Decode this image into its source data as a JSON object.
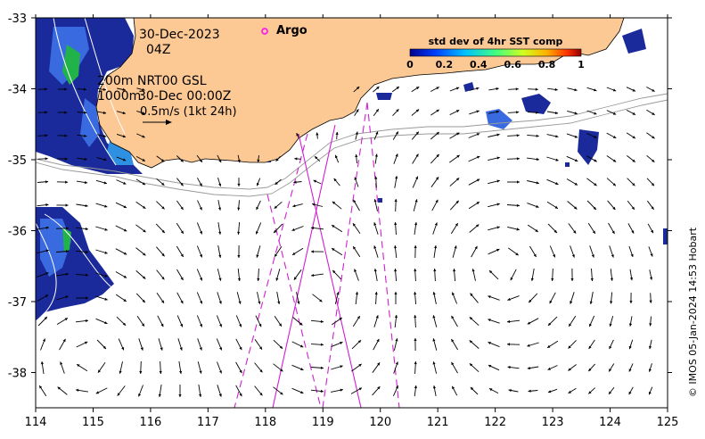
{
  "map": {
    "date": "30-Dec-2023",
    "time": "04Z",
    "depth_label_1": "200m",
    "depth_label_2": "1000m",
    "product": "NRT00 GSL",
    "product_time": "30-Dec 00:00Z",
    "scale_label": "0.5m/s (1kt 24h)",
    "legend_argo": "Argo",
    "colorbar_title": "std dev of 4hr SST comp",
    "colorbar_ticks": [
      "0",
      "0.2",
      "0.4",
      "0.6",
      "0.8",
      "1"
    ],
    "credit": "© IMOS 05-Jan-2024 14:53 Hobart",
    "x_ticks": [
      "114",
      "115",
      "116",
      "117",
      "118",
      "119",
      "120",
      "121",
      "122",
      "123",
      "124",
      "125"
    ],
    "y_ticks": [
      "-33",
      "-34",
      "-35",
      "-36",
      "-37",
      "-38"
    ],
    "colors": {
      "land": "#fcc894",
      "argo_marker": "#ff00ff",
      "track": "#d020d0",
      "sst_dark": "#1a2a9a",
      "sst_mid": "#3a6adf"
    }
  }
}
